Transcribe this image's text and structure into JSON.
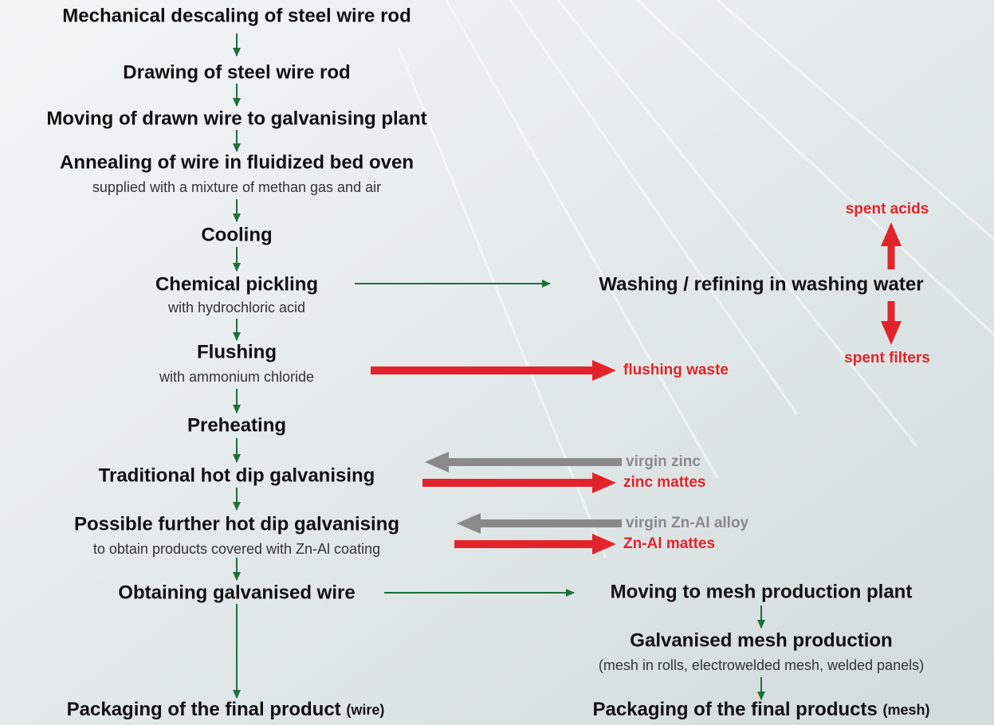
{
  "steps": [
    {
      "title": "Mechanical descaling of steel wire rod"
    },
    {
      "title": "Drawing of steel wire rod"
    },
    {
      "title": "Moving of drawn wire to galvanising plant"
    },
    {
      "title": "Annealing of wire in fluidized bed oven",
      "detail": "supplied with a mixture of methan gas and air"
    },
    {
      "title": "Cooling"
    },
    {
      "title": "Chemical pickling",
      "detail": "with hydrochloric acid"
    },
    {
      "title": "Flushing",
      "detail": "with ammonium chloride"
    },
    {
      "title": "Preheating"
    },
    {
      "title": "Traditional hot dip galvanising"
    },
    {
      "title": "Possible further hot dip galvanising",
      "detail": "to obtain products covered with Zn-Al coating"
    },
    {
      "title": "Obtaining galvanised wire"
    },
    {
      "title": "Packaging of the final product",
      "qualifier": "(wire)"
    }
  ],
  "washing": {
    "title": "Washing / refining in washing water",
    "up": "spent acids",
    "down": "spent filters"
  },
  "flushing_output": "flushing waste",
  "galvanising_io": {
    "input": "virgin zinc",
    "output": "zinc mattes"
  },
  "further_io": {
    "input": "virgin Zn-Al alloy",
    "output": "Zn-Al mattes"
  },
  "mesh_steps": [
    {
      "title": "Moving to mesh production plant"
    },
    {
      "title": "Galvanised mesh production",
      "detail": "(mesh in rolls, electrowelded mesh, welded panels)"
    },
    {
      "title": "Packaging of the final products",
      "qualifier": "(mesh)"
    }
  ]
}
